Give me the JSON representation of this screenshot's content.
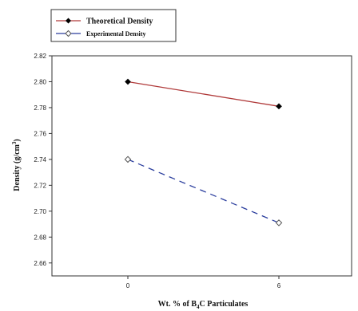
{
  "chart_data": {
    "type": "line",
    "title": "",
    "xlabel": "Wt. % of B4C Particulates",
    "ylabel": "Density (g/cm3)",
    "x": [
      0,
      6
    ],
    "x_tick_labels": [
      "0",
      "6"
    ],
    "ylim": [
      2.65,
      2.82
    ],
    "y_ticks": [
      2.66,
      2.68,
      2.7,
      2.72,
      2.74,
      2.76,
      2.78,
      2.8,
      2.82
    ],
    "y_tick_labels": [
      "2.66",
      "2.68",
      "2.70",
      "2.72",
      "2.74",
      "2.76",
      "2.78",
      "2.80",
      "2.82"
    ],
    "grid": false,
    "legend_position": "top-left",
    "series": [
      {
        "name": "Theoretical Density",
        "values": [
          2.8,
          2.781
        ],
        "line_color": "#b03a3a",
        "line_style": "solid",
        "marker": "filled-diamond",
        "marker_color": "#000000"
      },
      {
        "name": "Experimental Density",
        "values": [
          2.74,
          2.691
        ],
        "line_color": "#2c3f9e",
        "line_style": "dashed",
        "marker": "open-diamond",
        "marker_color": "#555555"
      }
    ]
  }
}
